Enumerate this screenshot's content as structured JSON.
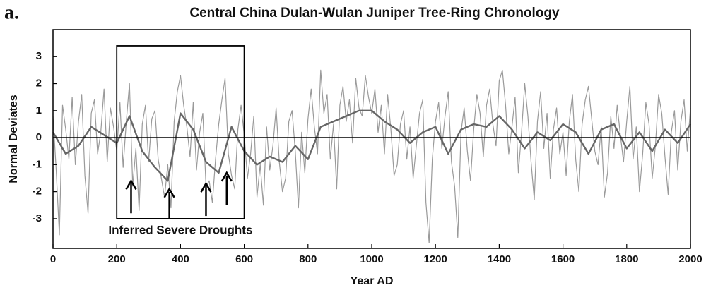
{
  "chart_data": {
    "type": "line",
    "panel_label": "a.",
    "title": "Central China Dulan-Wulan Juniper Tree-Ring Chronology",
    "xlabel": "Year AD",
    "ylabel": "Normal Deviates",
    "xlim": [
      0,
      2000
    ],
    "xticks": [
      0,
      200,
      400,
      600,
      800,
      1000,
      1200,
      1400,
      1600,
      1800,
      2000
    ],
    "ylim": [
      -4.1,
      4.0
    ],
    "yticks": [
      -3,
      -2,
      -1,
      0,
      1,
      2,
      3
    ],
    "reference_line": 0,
    "series": [
      {
        "color": "#9a9a9a",
        "x": [
          0,
          10,
          20,
          30,
          40,
          50,
          60,
          70,
          80,
          90,
          100,
          110,
          120,
          130,
          140,
          150,
          160,
          170,
          180,
          190,
          200,
          210,
          220,
          230,
          240,
          250,
          260,
          270,
          280,
          290,
          300,
          310,
          320,
          330,
          340,
          350,
          360,
          370,
          380,
          390,
          400,
          410,
          420,
          430,
          440,
          450,
          460,
          470,
          480,
          490,
          500,
          510,
          520,
          530,
          540,
          550,
          560,
          570,
          580,
          590,
          600,
          610,
          620,
          630,
          640,
          650,
          660,
          670,
          680,
          690,
          700,
          710,
          720,
          730,
          740,
          750,
          760,
          770,
          780,
          790,
          800,
          810,
          820,
          830,
          840,
          850,
          860,
          870,
          880,
          890,
          900,
          910,
          920,
          930,
          940,
          950,
          960,
          970,
          980,
          990,
          1000,
          1010,
          1020,
          1030,
          1040,
          1050,
          1060,
          1070,
          1080,
          1090,
          1100,
          1110,
          1120,
          1130,
          1140,
          1150,
          1160,
          1170,
          1180,
          1190,
          1200,
          1210,
          1220,
          1230,
          1240,
          1250,
          1260,
          1270,
          1280,
          1290,
          1300,
          1310,
          1320,
          1330,
          1340,
          1350,
          1360,
          1370,
          1380,
          1390,
          1400,
          1410,
          1420,
          1430,
          1440,
          1450,
          1460,
          1470,
          1480,
          1490,
          1500,
          1510,
          1520,
          1530,
          1540,
          1550,
          1560,
          1570,
          1580,
          1590,
          1600,
          1610,
          1620,
          1630,
          1640,
          1650,
          1660,
          1670,
          1680,
          1690,
          1700,
          1710,
          1720,
          1730,
          1740,
          1750,
          1760,
          1770,
          1780,
          1790,
          1800,
          1810,
          1820,
          1830,
          1840,
          1850,
          1860,
          1870,
          1880,
          1890,
          1900,
          1910,
          1920,
          1930,
          1940,
          1950,
          1960,
          1970,
          1980,
          1990,
          2000
        ],
        "values": [
          0.8,
          -1.2,
          -3.6,
          1.2,
          0.3,
          -0.8,
          1.5,
          -1.0,
          0.6,
          1.6,
          -1.4,
          -2.8,
          0.9,
          1.4,
          -0.6,
          0.2,
          1.8,
          -0.9,
          1.1,
          0.4,
          -0.5,
          1.3,
          -1.1,
          0.6,
          2.0,
          -1.8,
          -0.4,
          -2.7,
          0.5,
          1.2,
          -0.9,
          0.7,
          1.0,
          -0.8,
          -1.5,
          -2.2,
          -1.0,
          -2.6,
          0.6,
          1.7,
          2.3,
          1.2,
          0.4,
          -0.7,
          1.3,
          -1.2,
          0.2,
          0.9,
          -1.8,
          -1.6,
          -2.4,
          -0.8,
          0.5,
          1.4,
          2.2,
          -0.6,
          -1.4,
          -1.9,
          0.3,
          1.2,
          0.1,
          -1.5,
          -0.6,
          0.8,
          -2.2,
          -1.0,
          -2.5,
          0.4,
          -1.2,
          -0.3,
          1.1,
          -0.9,
          -2.0,
          -1.5,
          0.6,
          1.0,
          -0.5,
          -2.6,
          0.2,
          -1.3,
          0.7,
          1.8,
          0.4,
          -0.6,
          2.5,
          0.9,
          1.6,
          -0.8,
          0.5,
          -1.9,
          1.2,
          1.9,
          0.6,
          1.4,
          -0.2,
          2.2,
          1.1,
          0.8,
          2.3,
          1.5,
          0.9,
          1.8,
          0.2,
          1.2,
          -0.6,
          1.6,
          0.3,
          -1.4,
          -1.0,
          0.5,
          1.0,
          -0.8,
          0.4,
          -1.5,
          -0.3,
          0.9,
          1.4,
          -2.4,
          -3.9,
          -0.8,
          0.6,
          1.3,
          -0.4,
          0.8,
          1.7,
          -0.9,
          -1.8,
          -3.7,
          0.2,
          1.1,
          -0.5,
          -1.6,
          0.3,
          1.6,
          0.9,
          -0.7,
          1.2,
          1.8,
          0.5,
          -0.3,
          2.1,
          2.5,
          1.2,
          -0.6,
          0.4,
          1.5,
          -1.3,
          0.2,
          2.0,
          0.8,
          -0.9,
          -2.3,
          0.6,
          1.7,
          -0.4,
          0.9,
          -1.5,
          0.3,
          1.1,
          -0.6,
          0.2,
          -1.4,
          0.6,
          1.6,
          -0.8,
          -2.0,
          0.5,
          1.4,
          1.9,
          0.7,
          -0.5,
          -1.0,
          0.4,
          -2.2,
          -1.3,
          0.8,
          -0.4,
          1.2,
          0.1,
          -0.9,
          0.6,
          1.9,
          -0.8,
          0.4,
          -2.0,
          -0.6,
          1.3,
          0.5,
          -1.5,
          -0.3,
          1.6,
          0.9,
          -0.7,
          -2.1,
          0.2,
          1.0,
          -1.2,
          0.6,
          1.4,
          -0.5,
          1.1
        ]
      },
      {
        "color": "#666666",
        "x": [
          0,
          40,
          80,
          120,
          160,
          200,
          240,
          280,
          320,
          360,
          400,
          440,
          480,
          520,
          560,
          600,
          640,
          680,
          720,
          760,
          800,
          840,
          880,
          920,
          960,
          1000,
          1040,
          1080,
          1120,
          1160,
          1200,
          1240,
          1280,
          1320,
          1360,
          1400,
          1440,
          1480,
          1520,
          1560,
          1600,
          1640,
          1680,
          1720,
          1760,
          1800,
          1840,
          1880,
          1920,
          1960,
          2000
        ],
        "values": [
          0.2,
          -0.6,
          -0.3,
          0.4,
          0.1,
          -0.2,
          0.8,
          -0.5,
          -1.1,
          -1.6,
          0.9,
          0.3,
          -0.9,
          -1.3,
          0.4,
          -0.5,
          -1.0,
          -0.7,
          -0.9,
          -0.3,
          -0.8,
          0.4,
          0.6,
          0.8,
          1.0,
          1.0,
          0.6,
          0.3,
          -0.2,
          0.2,
          0.4,
          -0.6,
          0.3,
          0.5,
          0.4,
          0.8,
          0.3,
          -0.4,
          0.2,
          -0.1,
          0.5,
          0.2,
          -0.6,
          0.3,
          0.5,
          -0.4,
          0.2,
          -0.5,
          0.3,
          -0.2,
          0.5
        ]
      }
    ],
    "annotation": {
      "text": "Inferred Severe Droughts",
      "box": {
        "xlim": [
          200,
          600
        ],
        "ylim": [
          -3.0,
          3.4
        ]
      },
      "arrows": [
        {
          "x": 245,
          "y": [
            -2.8,
            -1.6
          ]
        },
        {
          "x": 365,
          "y": [
            -3.0,
            -1.9
          ]
        },
        {
          "x": 480,
          "y": [
            -2.9,
            -1.7
          ]
        },
        {
          "x": 545,
          "y": [
            -2.5,
            -1.3
          ]
        }
      ]
    }
  }
}
